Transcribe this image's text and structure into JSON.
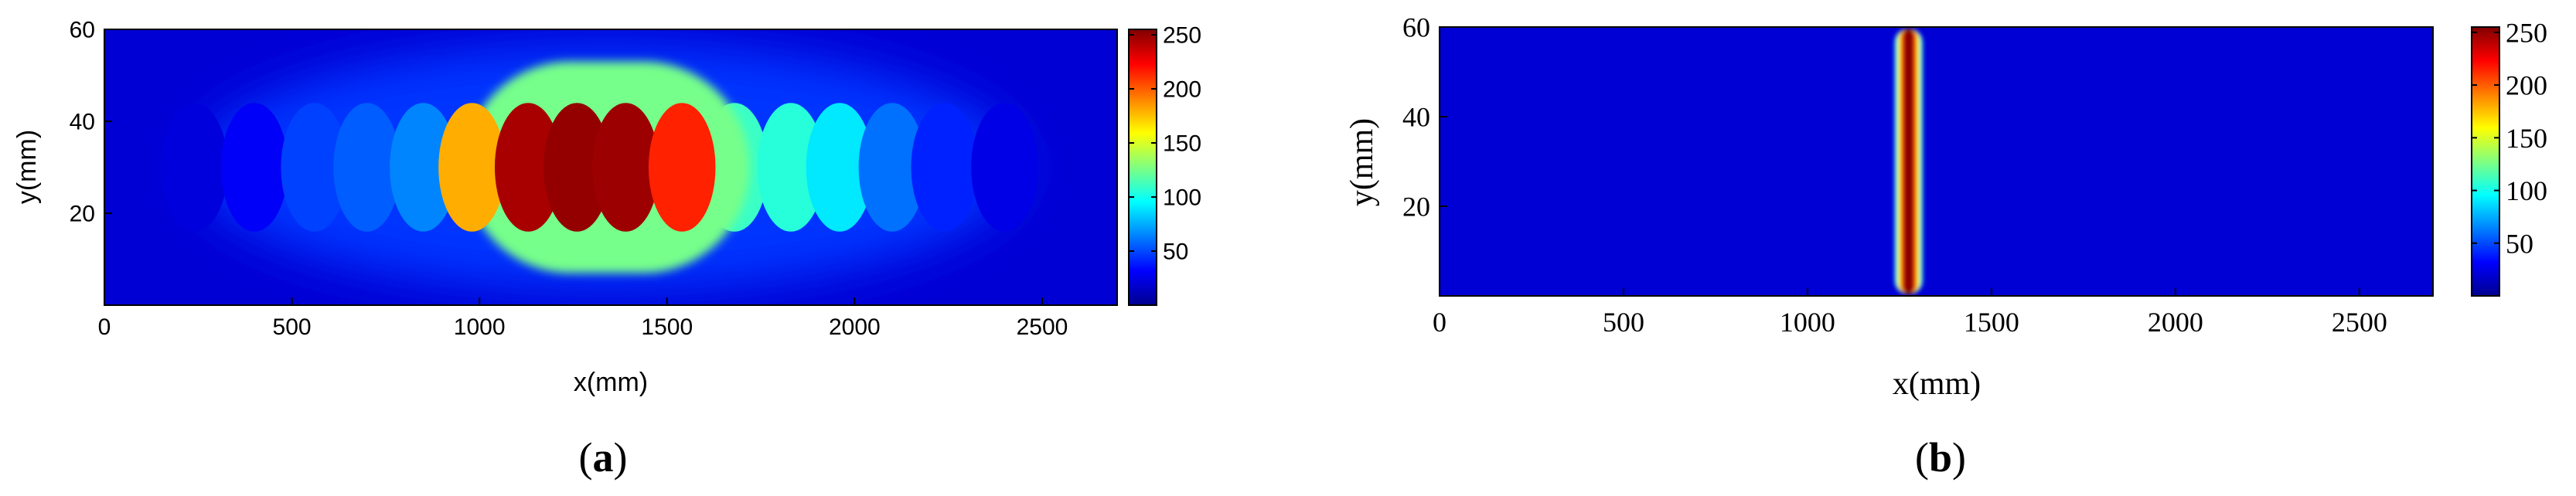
{
  "colors": {
    "colormap": "jet",
    "jet_stops": [
      "#00008f",
      "#0000ff",
      "#0080ff",
      "#00ffff",
      "#80ff80",
      "#ffff00",
      "#ff8000",
      "#ff0000",
      "#800000"
    ]
  },
  "chart_data": [
    {
      "type": "heatmap",
      "panel_label": "(a)",
      "panel_letter": "a",
      "xlabel": "x(mm)",
      "ylabel": "y(mm)",
      "xlim": [
        0,
        2700
      ],
      "ylim": [
        0,
        60
      ],
      "xticks": [
        0,
        500,
        1000,
        1500,
        2000,
        2500
      ],
      "yticks": [
        20,
        40,
        60
      ],
      "colorbar": {
        "range": [
          0,
          255
        ],
        "ticks": [
          50,
          100,
          150,
          200,
          250
        ]
      },
      "background_value": 20,
      "description_of_field": "row of overlapping circular blobs along y=30",
      "blob_centers_x": [
        240,
        400,
        560,
        700,
        850,
        980,
        1130,
        1260,
        1390,
        1540,
        1680,
        1830,
        1960,
        2100,
        2240,
        2400
      ],
      "blob_values": [
        22,
        30,
        48,
        55,
        65,
        180,
        245,
        250,
        248,
        215,
        110,
        105,
        90,
        60,
        40,
        25
      ],
      "blob_center_y": 30,
      "blob_radius_mm": 170,
      "halo": {
        "x_center": 1340,
        "y_center": 30,
        "half_length_x": 380,
        "half_width_y": 23,
        "value": 125
      },
      "outer_glow": {
        "x_center": 1340,
        "y_center": 30,
        "half_length_x": 1100,
        "half_width_y": 27,
        "value": 45
      }
    },
    {
      "type": "heatmap",
      "panel_label": "(b)",
      "panel_letter": "b",
      "xlabel": "x(mm)",
      "ylabel": "y(mm)",
      "xlim": [
        0,
        2700
      ],
      "ylim": [
        0,
        60
      ],
      "xticks": [
        0,
        500,
        1000,
        1500,
        2000,
        2500
      ],
      "yticks": [
        20,
        40,
        60
      ],
      "colorbar": {
        "range": [
          0,
          255
        ],
        "ticks": [
          50,
          100,
          150,
          200,
          250
        ]
      },
      "background_value": 20,
      "description_of_field": "narrow vertical strip",
      "strip": {
        "x_center": 1275,
        "half_width_mm": 38,
        "peak_value": 255
      }
    }
  ]
}
